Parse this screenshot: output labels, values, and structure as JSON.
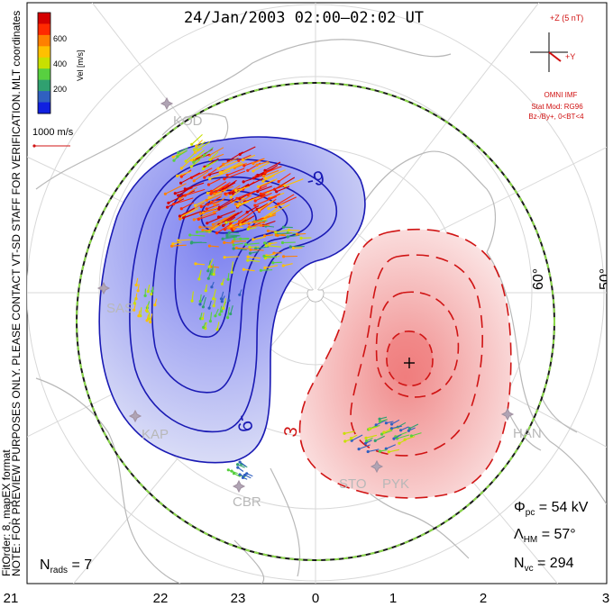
{
  "title": "24/Jan/2003 02:00–02:02 UT",
  "side_note_1": "NOTE: FOR PREVIEW PURPOSES ONLY. PLEASE CONTACT VT-SD STAFF FOR VERIFICATION.",
  "side_note_2": "FitOrder: 8,  mapEX format",
  "coords_label": "MLT coordinates",
  "colorbar": {
    "label": "Vel [m/s]",
    "ticks": [
      "600",
      "400",
      "200"
    ],
    "colors": [
      "#d40000",
      "#ff2a00",
      "#ff8000",
      "#ffc000",
      "#c8e000",
      "#58d040",
      "#30a070",
      "#3060c0",
      "#1020e0"
    ]
  },
  "velocity_scale": "1000 m/s",
  "imf": {
    "z_label": "+Z (5 nT)",
    "y_label": "+Y",
    "source": "OMNI IMF",
    "stat_mod": "Stat Mod: RG96",
    "condition": "Bz-/By+, 0<BT<4",
    "color": "#d01010"
  },
  "latitude_labels": [
    "60°",
    "50°"
  ],
  "stations": [
    "KOD",
    "SAS",
    "KAP",
    "CBR",
    "STO",
    "PYK",
    "HAN"
  ],
  "contour_labels": {
    "neg": "-9",
    "neg2": "-9",
    "pos": "3"
  },
  "stats": {
    "phi_pc": {
      "symbol": "Φ",
      "sub": "pc",
      "text": " = 54 kV"
    },
    "lambda_hm": {
      "symbol": "Λ",
      "sub": "HM",
      "text": " = 57°"
    },
    "n_vc": {
      "symbol": "N",
      "sub": "vc",
      "text": " = 294"
    },
    "n_rads": {
      "symbol": "N",
      "sub": "rads",
      "text": " = 7"
    }
  },
  "mlt_axis": [
    "21",
    "22",
    "23",
    "0",
    "1",
    "2",
    "3"
  ],
  "convection_colors": {
    "dusk_cell": "#1a1ab4",
    "dawn_cell": "#d01414",
    "hmb": "#2a2a2a",
    "hmb_dash": "#8ad848"
  }
}
